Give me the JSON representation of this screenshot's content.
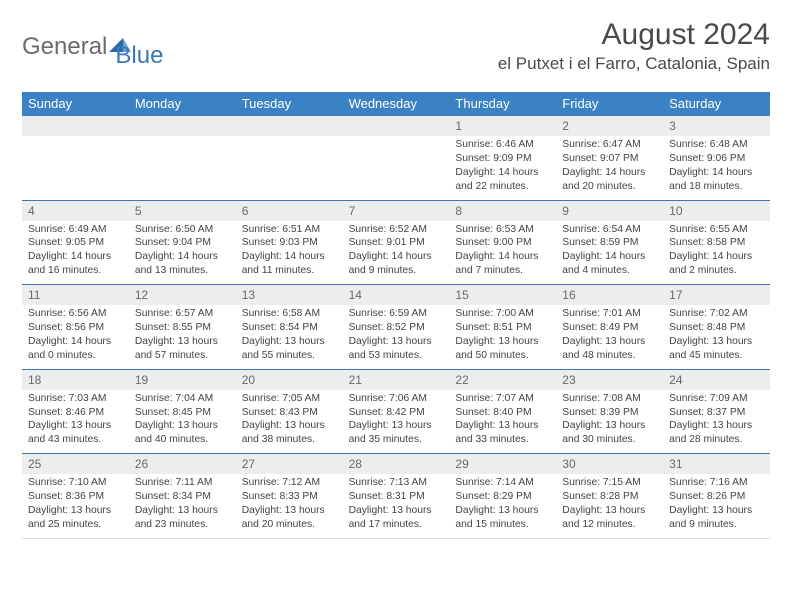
{
  "logo": {
    "gen": "General",
    "blue": "Blue"
  },
  "title": "August 2024",
  "location": "el Putxet i el Farro, Catalonia, Spain",
  "colors": {
    "header_bg": "#3a82c4",
    "header_text": "#ffffff",
    "week_divider": "#3a79b7",
    "daynum_bg": "#ededed",
    "body_text": "#444444"
  },
  "day_headers": [
    "Sunday",
    "Monday",
    "Tuesday",
    "Wednesday",
    "Thursday",
    "Friday",
    "Saturday"
  ],
  "weeks": [
    {
      "nums": [
        "",
        "",
        "",
        "",
        "1",
        "2",
        "3"
      ],
      "cells": [
        {
          "sunrise": "",
          "sunset": "",
          "daylight1": "",
          "daylight2": ""
        },
        {
          "sunrise": "",
          "sunset": "",
          "daylight1": "",
          "daylight2": ""
        },
        {
          "sunrise": "",
          "sunset": "",
          "daylight1": "",
          "daylight2": ""
        },
        {
          "sunrise": "",
          "sunset": "",
          "daylight1": "",
          "daylight2": ""
        },
        {
          "sunrise": "Sunrise: 6:46 AM",
          "sunset": "Sunset: 9:09 PM",
          "daylight1": "Daylight: 14 hours",
          "daylight2": "and 22 minutes."
        },
        {
          "sunrise": "Sunrise: 6:47 AM",
          "sunset": "Sunset: 9:07 PM",
          "daylight1": "Daylight: 14 hours",
          "daylight2": "and 20 minutes."
        },
        {
          "sunrise": "Sunrise: 6:48 AM",
          "sunset": "Sunset: 9:06 PM",
          "daylight1": "Daylight: 14 hours",
          "daylight2": "and 18 minutes."
        }
      ]
    },
    {
      "nums": [
        "4",
        "5",
        "6",
        "7",
        "8",
        "9",
        "10"
      ],
      "cells": [
        {
          "sunrise": "Sunrise: 6:49 AM",
          "sunset": "Sunset: 9:05 PM",
          "daylight1": "Daylight: 14 hours",
          "daylight2": "and 16 minutes."
        },
        {
          "sunrise": "Sunrise: 6:50 AM",
          "sunset": "Sunset: 9:04 PM",
          "daylight1": "Daylight: 14 hours",
          "daylight2": "and 13 minutes."
        },
        {
          "sunrise": "Sunrise: 6:51 AM",
          "sunset": "Sunset: 9:03 PM",
          "daylight1": "Daylight: 14 hours",
          "daylight2": "and 11 minutes."
        },
        {
          "sunrise": "Sunrise: 6:52 AM",
          "sunset": "Sunset: 9:01 PM",
          "daylight1": "Daylight: 14 hours",
          "daylight2": "and 9 minutes."
        },
        {
          "sunrise": "Sunrise: 6:53 AM",
          "sunset": "Sunset: 9:00 PM",
          "daylight1": "Daylight: 14 hours",
          "daylight2": "and 7 minutes."
        },
        {
          "sunrise": "Sunrise: 6:54 AM",
          "sunset": "Sunset: 8:59 PM",
          "daylight1": "Daylight: 14 hours",
          "daylight2": "and 4 minutes."
        },
        {
          "sunrise": "Sunrise: 6:55 AM",
          "sunset": "Sunset: 8:58 PM",
          "daylight1": "Daylight: 14 hours",
          "daylight2": "and 2 minutes."
        }
      ]
    },
    {
      "nums": [
        "11",
        "12",
        "13",
        "14",
        "15",
        "16",
        "17"
      ],
      "cells": [
        {
          "sunrise": "Sunrise: 6:56 AM",
          "sunset": "Sunset: 8:56 PM",
          "daylight1": "Daylight: 14 hours",
          "daylight2": "and 0 minutes."
        },
        {
          "sunrise": "Sunrise: 6:57 AM",
          "sunset": "Sunset: 8:55 PM",
          "daylight1": "Daylight: 13 hours",
          "daylight2": "and 57 minutes."
        },
        {
          "sunrise": "Sunrise: 6:58 AM",
          "sunset": "Sunset: 8:54 PM",
          "daylight1": "Daylight: 13 hours",
          "daylight2": "and 55 minutes."
        },
        {
          "sunrise": "Sunrise: 6:59 AM",
          "sunset": "Sunset: 8:52 PM",
          "daylight1": "Daylight: 13 hours",
          "daylight2": "and 53 minutes."
        },
        {
          "sunrise": "Sunrise: 7:00 AM",
          "sunset": "Sunset: 8:51 PM",
          "daylight1": "Daylight: 13 hours",
          "daylight2": "and 50 minutes."
        },
        {
          "sunrise": "Sunrise: 7:01 AM",
          "sunset": "Sunset: 8:49 PM",
          "daylight1": "Daylight: 13 hours",
          "daylight2": "and 48 minutes."
        },
        {
          "sunrise": "Sunrise: 7:02 AM",
          "sunset": "Sunset: 8:48 PM",
          "daylight1": "Daylight: 13 hours",
          "daylight2": "and 45 minutes."
        }
      ]
    },
    {
      "nums": [
        "18",
        "19",
        "20",
        "21",
        "22",
        "23",
        "24"
      ],
      "cells": [
        {
          "sunrise": "Sunrise: 7:03 AM",
          "sunset": "Sunset: 8:46 PM",
          "daylight1": "Daylight: 13 hours",
          "daylight2": "and 43 minutes."
        },
        {
          "sunrise": "Sunrise: 7:04 AM",
          "sunset": "Sunset: 8:45 PM",
          "daylight1": "Daylight: 13 hours",
          "daylight2": "and 40 minutes."
        },
        {
          "sunrise": "Sunrise: 7:05 AM",
          "sunset": "Sunset: 8:43 PM",
          "daylight1": "Daylight: 13 hours",
          "daylight2": "and 38 minutes."
        },
        {
          "sunrise": "Sunrise: 7:06 AM",
          "sunset": "Sunset: 8:42 PM",
          "daylight1": "Daylight: 13 hours",
          "daylight2": "and 35 minutes."
        },
        {
          "sunrise": "Sunrise: 7:07 AM",
          "sunset": "Sunset: 8:40 PM",
          "daylight1": "Daylight: 13 hours",
          "daylight2": "and 33 minutes."
        },
        {
          "sunrise": "Sunrise: 7:08 AM",
          "sunset": "Sunset: 8:39 PM",
          "daylight1": "Daylight: 13 hours",
          "daylight2": "and 30 minutes."
        },
        {
          "sunrise": "Sunrise: 7:09 AM",
          "sunset": "Sunset: 8:37 PM",
          "daylight1": "Daylight: 13 hours",
          "daylight2": "and 28 minutes."
        }
      ]
    },
    {
      "nums": [
        "25",
        "26",
        "27",
        "28",
        "29",
        "30",
        "31"
      ],
      "cells": [
        {
          "sunrise": "Sunrise: 7:10 AM",
          "sunset": "Sunset: 8:36 PM",
          "daylight1": "Daylight: 13 hours",
          "daylight2": "and 25 minutes."
        },
        {
          "sunrise": "Sunrise: 7:11 AM",
          "sunset": "Sunset: 8:34 PM",
          "daylight1": "Daylight: 13 hours",
          "daylight2": "and 23 minutes."
        },
        {
          "sunrise": "Sunrise: 7:12 AM",
          "sunset": "Sunset: 8:33 PM",
          "daylight1": "Daylight: 13 hours",
          "daylight2": "and 20 minutes."
        },
        {
          "sunrise": "Sunrise: 7:13 AM",
          "sunset": "Sunset: 8:31 PM",
          "daylight1": "Daylight: 13 hours",
          "daylight2": "and 17 minutes."
        },
        {
          "sunrise": "Sunrise: 7:14 AM",
          "sunset": "Sunset: 8:29 PM",
          "daylight1": "Daylight: 13 hours",
          "daylight2": "and 15 minutes."
        },
        {
          "sunrise": "Sunrise: 7:15 AM",
          "sunset": "Sunset: 8:28 PM",
          "daylight1": "Daylight: 13 hours",
          "daylight2": "and 12 minutes."
        },
        {
          "sunrise": "Sunrise: 7:16 AM",
          "sunset": "Sunset: 8:26 PM",
          "daylight1": "Daylight: 13 hours",
          "daylight2": "and 9 minutes."
        }
      ]
    }
  ]
}
